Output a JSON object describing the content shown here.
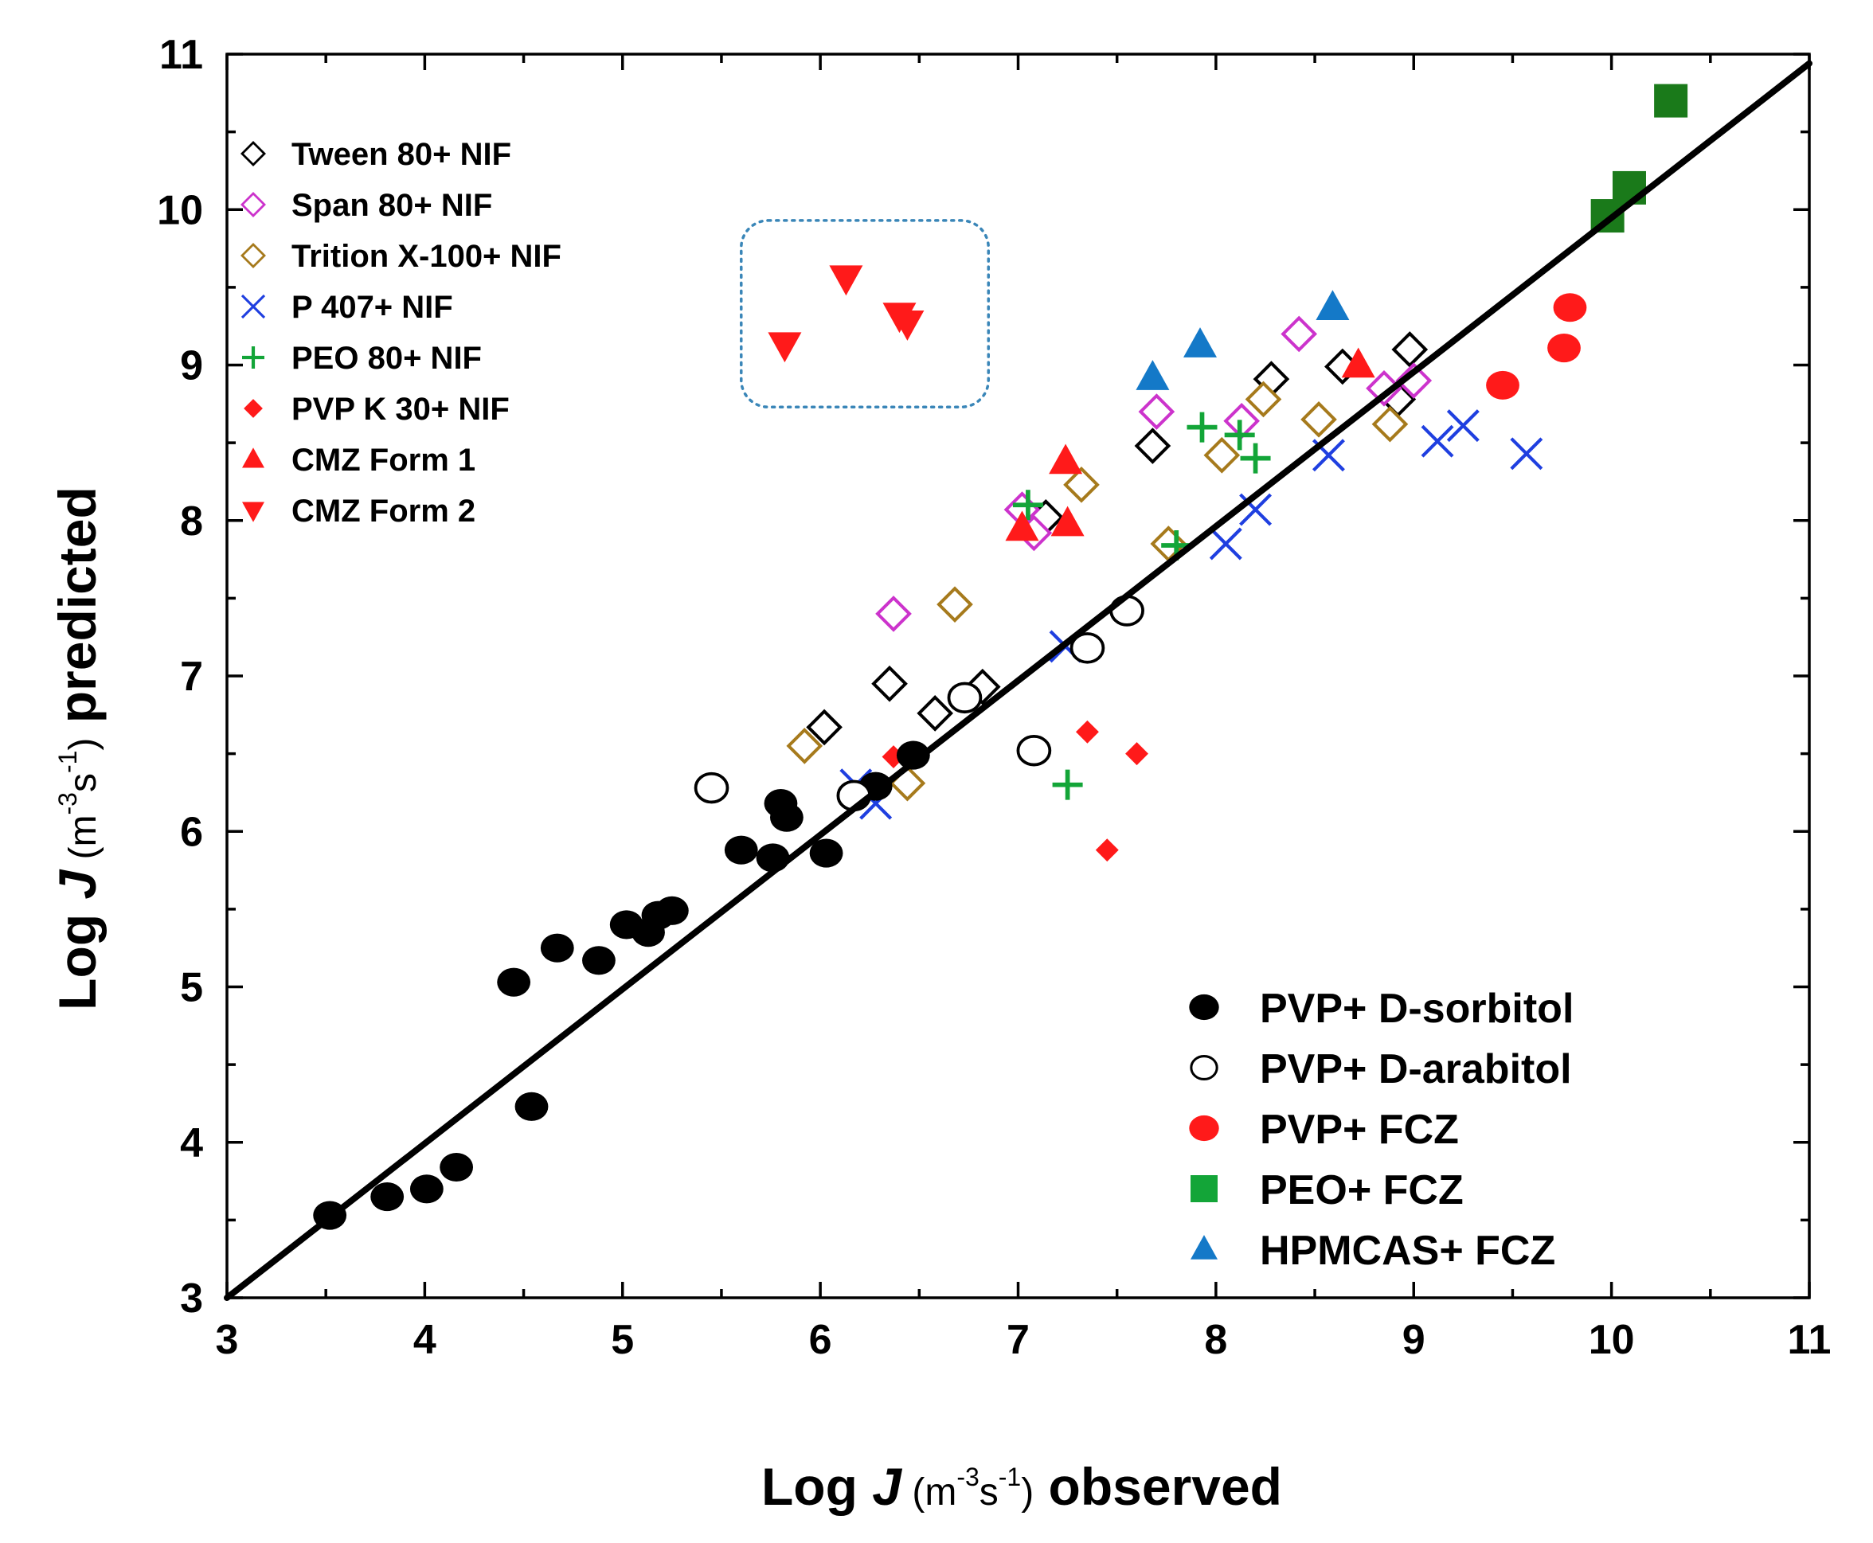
{
  "chart_data": {
    "type": "scatter",
    "xlabel": {
      "prefix": "Log ",
      "var": "J",
      "unit_open": " (m",
      "unit_exp1": "-3",
      "unit_mid": "s",
      "unit_exp2": "-1",
      "unit_close": ")",
      "suffix": " observed"
    },
    "ylabel": {
      "prefix": "Log ",
      "var": "J",
      "unit_open": " (m",
      "unit_exp1": "-3",
      "unit_mid": "s",
      "unit_exp2": "-1",
      "unit_close": ")",
      "suffix": " predicted"
    },
    "xlim": [
      3,
      11
    ],
    "ylim": [
      3,
      11
    ],
    "xticks": [
      "3",
      "4",
      "5",
      "6",
      "7",
      "8",
      "9",
      "10",
      "11"
    ],
    "yticks": [
      "3",
      "4",
      "5",
      "6",
      "7",
      "8",
      "9",
      "10",
      "11"
    ],
    "reference_line": {
      "x": [
        3,
        11
      ],
      "y": [
        3,
        10.94
      ]
    },
    "highlight_box": {
      "x": [
        5.6,
        6.85
      ],
      "y": [
        8.73,
        9.93
      ]
    },
    "series": [
      {
        "name": "Tween 80+ NIF",
        "marker": "diamond-open",
        "color": "#000000",
        "legend": "upper-left",
        "points": [
          [
            6.02,
            6.67
          ],
          [
            6.35,
            6.95
          ],
          [
            6.58,
            6.76
          ],
          [
            6.82,
            6.93
          ],
          [
            7.14,
            8.02
          ],
          [
            7.68,
            8.48
          ],
          [
            8.28,
            8.91
          ],
          [
            8.64,
            8.99
          ],
          [
            8.98,
            9.1
          ],
          [
            8.92,
            8.78
          ]
        ]
      },
      {
        "name": "Span 80+ NIF",
        "marker": "diamond-open",
        "color": "#cc33cc",
        "legend": "upper-left",
        "points": [
          [
            6.37,
            7.4
          ],
          [
            7.02,
            8.07
          ],
          [
            7.08,
            7.92
          ],
          [
            7.7,
            8.7
          ],
          [
            8.13,
            8.64
          ],
          [
            8.42,
            9.2
          ],
          [
            8.85,
            8.85
          ],
          [
            9.0,
            8.9
          ]
        ]
      },
      {
        "name": "Trition X-100+ NIF",
        "marker": "diamond-open",
        "color": "#a67a1c",
        "legend": "upper-left",
        "points": [
          [
            5.92,
            6.55
          ],
          [
            6.44,
            6.31
          ],
          [
            6.68,
            7.46
          ],
          [
            7.32,
            8.23
          ],
          [
            7.76,
            7.85
          ],
          [
            8.03,
            8.42
          ],
          [
            8.24,
            8.78
          ],
          [
            8.52,
            8.65
          ],
          [
            8.88,
            8.62
          ]
        ]
      },
      {
        "name": "P 407+ NIF",
        "marker": "x",
        "color": "#1f3fe0",
        "legend": "upper-left",
        "points": [
          [
            6.18,
            6.3
          ],
          [
            6.28,
            6.18
          ],
          [
            7.24,
            7.19
          ],
          [
            8.05,
            7.85
          ],
          [
            8.2,
            8.07
          ],
          [
            8.57,
            8.42
          ],
          [
            9.12,
            8.51
          ],
          [
            9.25,
            8.61
          ],
          [
            9.57,
            8.43
          ]
        ]
      },
      {
        "name": "PEO 80+ NIF",
        "marker": "plus",
        "color": "#13a538",
        "legend": "upper-left",
        "points": [
          [
            7.05,
            8.1
          ],
          [
            7.25,
            6.3
          ],
          [
            7.8,
            7.84
          ],
          [
            7.93,
            8.6
          ],
          [
            8.12,
            8.55
          ],
          [
            8.2,
            8.4
          ]
        ]
      },
      {
        "name": "PVP K 30+ NIF",
        "marker": "diamond-filled",
        "color": "#ff1a1a",
        "legend": "upper-left",
        "points": [
          [
            6.37,
            6.48
          ],
          [
            7.35,
            6.64
          ],
          [
            7.45,
            5.88
          ],
          [
            7.6,
            6.5
          ]
        ]
      },
      {
        "name": "CMZ Form 1",
        "marker": "triangle-up",
        "color": "#ff1a1a",
        "legend": "upper-left",
        "points": [
          [
            7.02,
            7.95
          ],
          [
            7.24,
            8.38
          ],
          [
            7.25,
            7.98
          ],
          [
            8.72,
            9.0
          ]
        ]
      },
      {
        "name": "CMZ Form 2",
        "marker": "triangle-down",
        "color": "#ff1a1a",
        "legend": "upper-left",
        "points": [
          [
            5.82,
            9.13
          ],
          [
            6.13,
            9.56
          ],
          [
            6.4,
            9.32
          ],
          [
            6.44,
            9.27
          ]
        ]
      },
      {
        "name": "PVP+ D-sorbitol",
        "marker": "circle-filled",
        "color": "#000000",
        "legend": "lower-right",
        "points": [
          [
            3.52,
            3.53
          ],
          [
            3.81,
            3.65
          ],
          [
            4.01,
            3.7
          ],
          [
            4.16,
            3.84
          ],
          [
            4.45,
            5.03
          ],
          [
            4.54,
            4.23
          ],
          [
            4.67,
            5.25
          ],
          [
            4.88,
            5.17
          ],
          [
            5.02,
            5.4
          ],
          [
            5.13,
            5.35
          ],
          [
            5.18,
            5.46
          ],
          [
            5.25,
            5.49
          ],
          [
            5.6,
            5.88
          ],
          [
            5.76,
            5.83
          ],
          [
            5.8,
            6.18
          ],
          [
            5.83,
            6.09
          ],
          [
            6.03,
            5.86
          ],
          [
            6.28,
            6.29
          ],
          [
            6.47,
            6.49
          ]
        ]
      },
      {
        "name": "PVP+ D-arabitol",
        "marker": "circle-open",
        "color": "#000000",
        "legend": "lower-right",
        "points": [
          [
            5.45,
            6.28
          ],
          [
            6.17,
            6.23
          ],
          [
            6.73,
            6.86
          ],
          [
            7.08,
            6.52
          ],
          [
            7.35,
            7.18
          ],
          [
            7.55,
            7.42
          ]
        ]
      },
      {
        "name": "PVP+ FCZ",
        "marker": "circle-filled",
        "color": "#ff1a1a",
        "legend": "lower-right",
        "points": [
          [
            9.45,
            8.87
          ],
          [
            9.76,
            9.11
          ],
          [
            9.79,
            9.37
          ]
        ]
      },
      {
        "name": "PEO+ FCZ",
        "marker": "square-filled",
        "color": "#1a7a1a",
        "legend_color": "#13a538",
        "legend": "lower-right",
        "points": [
          [
            9.98,
            9.96
          ],
          [
            10.09,
            10.14
          ],
          [
            10.3,
            10.7
          ]
        ]
      },
      {
        "name": "HPMCAS+ FCZ",
        "marker": "triangle-up",
        "color": "#1479c8",
        "legend": "lower-right",
        "points": [
          [
            7.68,
            8.92
          ],
          [
            7.92,
            9.13
          ],
          [
            8.59,
            9.37
          ]
        ]
      }
    ]
  }
}
